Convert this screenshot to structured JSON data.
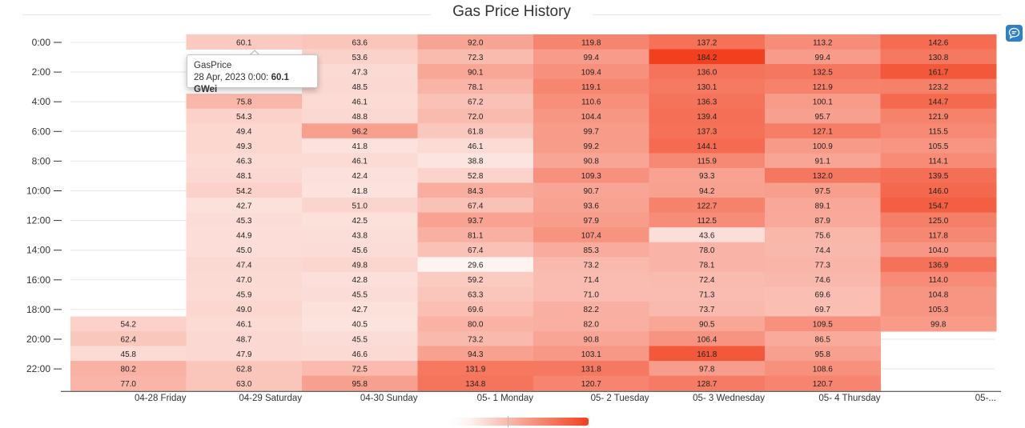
{
  "chart_data": {
    "type": "heatmap",
    "title": "Gas Price History",
    "columns": [
      "04-28 Friday",
      "04-29 Saturday",
      "04-30 Sunday",
      "05- 1 Monday",
      "05- 2 Tuesday",
      "05- 3 Wednesday",
      "05- 4 Thursday",
      "05-..."
    ],
    "y_tick_labels": [
      "0:00",
      "2:00",
      "4:00",
      "6:00",
      "8:00",
      "10:00",
      "12:00",
      "14:00",
      "16:00",
      "18:00",
      "20:00",
      "22:00"
    ],
    "value_range": [
      29.6,
      184.2
    ],
    "color_scale": {
      "low": "#fdf3f1",
      "high": "#f2401e"
    },
    "legend_placement": "bottom-center",
    "series": [
      {
        "values": [
          null,
          null,
          null,
          null,
          null,
          null,
          null,
          null,
          null,
          null,
          null,
          null,
          null,
          null,
          null,
          null,
          null,
          null,
          null,
          54.2,
          62.4,
          45.8,
          80.2,
          77.0
        ]
      },
      {
        "values": [
          60.1,
          null,
          null,
          null,
          75.8,
          54.3,
          49.4,
          49.3,
          46.3,
          48.1,
          54.2,
          42.7,
          45.3,
          44.9,
          45.0,
          47.4,
          47.0,
          45.9,
          49.0,
          46.1,
          48.7,
          47.9,
          62.8,
          63.0
        ]
      },
      {
        "values": [
          63.6,
          53.6,
          47.3,
          48.5,
          46.1,
          48.8,
          96.2,
          41.8,
          46.1,
          42.4,
          41.8,
          51.0,
          42.5,
          43.8,
          45.6,
          49.8,
          42.8,
          45.5,
          42.7,
          40.5,
          45.5,
          46.6,
          72.5,
          95.8
        ]
      },
      {
        "values": [
          92.0,
          72.3,
          90.1,
          78.1,
          67.2,
          72.0,
          61.8,
          46.1,
          38.8,
          52.8,
          84.3,
          67.4,
          93.7,
          81.1,
          67.4,
          29.6,
          59.2,
          63.3,
          69.6,
          80.0,
          73.2,
          94.3,
          131.9,
          134.8
        ]
      },
      {
        "values": [
          119.8,
          99.4,
          109.4,
          119.1,
          110.6,
          104.4,
          99.7,
          99.2,
          90.8,
          109.3,
          90.7,
          93.6,
          97.9,
          107.4,
          85.3,
          73.2,
          71.4,
          71.0,
          82.2,
          82.0,
          90.8,
          103.1,
          131.8,
          120.7
        ]
      },
      {
        "values": [
          137.2,
          184.2,
          136.0,
          130.1,
          136.3,
          139.4,
          137.3,
          144.1,
          115.9,
          93.3,
          94.2,
          122.7,
          112.5,
          43.6,
          78.0,
          78.1,
          72.4,
          71.3,
          73.7,
          90.5,
          106.4,
          161.8,
          97.8,
          128.7
        ]
      },
      {
        "values": [
          113.2,
          99.4,
          132.5,
          121.9,
          100.1,
          95.7,
          127.1,
          100.9,
          91.1,
          132.0,
          97.5,
          89.1,
          87.9,
          75.6,
          74.4,
          77.3,
          74.6,
          69.6,
          69.7,
          109.5,
          86.5,
          95.8,
          108.6,
          120.7
        ]
      },
      {
        "values": [
          142.6,
          130.8,
          161.7,
          123.2,
          144.7,
          121.9,
          115.5,
          105.5,
          114.1,
          139.5,
          146.0,
          154.7,
          125.0,
          117.8,
          104.0,
          136.9,
          114.0,
          104.8,
          105.3,
          99.8,
          null,
          null,
          null,
          null
        ]
      }
    ]
  },
  "tooltip": {
    "series_name": "GasPrice",
    "date_text": "28 Apr, 2023 0:00:",
    "value_text": "60.1 GWei"
  },
  "icons": {
    "side_button": "chat-bubble-icon"
  }
}
